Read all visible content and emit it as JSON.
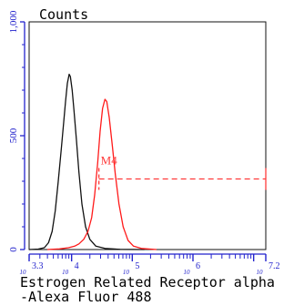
{
  "chart_data": {
    "type": "line",
    "title": "",
    "ylabel": "Counts",
    "xlabel_lines": [
      "Estrogen Related Receptor alpha",
      "-Alexa Fluor 488"
    ],
    "x_scale": "log",
    "xlim": [
      3.3,
      7.2
    ],
    "ylim": [
      0,
      1000
    ],
    "y_ticks": [
      {
        "value": 0,
        "label": "0"
      },
      {
        "value": 500,
        "label": "500"
      },
      {
        "value": 1000,
        "label": "1,000"
      }
    ],
    "x_ticks": [
      {
        "value": 3.3,
        "label": "10^3.3"
      },
      {
        "value": 4,
        "label": "10^4"
      },
      {
        "value": 5,
        "label": "10^5"
      },
      {
        "value": 6,
        "label": "10^6"
      },
      {
        "value": 7.2,
        "label": "10^7.2"
      }
    ],
    "series": [
      {
        "color": "#111111",
        "points": [
          [
            3.3,
            0
          ],
          [
            3.45,
            2
          ],
          [
            3.55,
            8
          ],
          [
            3.62,
            30
          ],
          [
            3.68,
            80
          ],
          [
            3.73,
            170
          ],
          [
            3.78,
            300
          ],
          [
            3.83,
            440
          ],
          [
            3.87,
            560
          ],
          [
            3.9,
            650
          ],
          [
            3.93,
            730
          ],
          [
            3.96,
            770
          ],
          [
            3.98,
            760
          ],
          [
            4.01,
            700
          ],
          [
            4.04,
            610
          ],
          [
            4.08,
            480
          ],
          [
            4.12,
            340
          ],
          [
            4.17,
            200
          ],
          [
            4.23,
            100
          ],
          [
            4.3,
            45
          ],
          [
            4.4,
            15
          ],
          [
            4.55,
            5
          ],
          [
            4.8,
            1
          ],
          [
            5.2,
            0
          ]
        ]
      },
      {
        "color": "#ff1a1a",
        "points": [
          [
            3.6,
            0
          ],
          [
            3.8,
            3
          ],
          [
            3.95,
            8
          ],
          [
            4.05,
            15
          ],
          [
            4.12,
            25
          ],
          [
            4.2,
            45
          ],
          [
            4.27,
            80
          ],
          [
            4.33,
            140
          ],
          [
            4.38,
            240
          ],
          [
            4.43,
            380
          ],
          [
            4.47,
            520
          ],
          [
            4.51,
            620
          ],
          [
            4.55,
            660
          ],
          [
            4.58,
            650
          ],
          [
            4.62,
            580
          ],
          [
            4.67,
            460
          ],
          [
            4.72,
            330
          ],
          [
            4.78,
            200
          ],
          [
            4.85,
            100
          ],
          [
            4.93,
            40
          ],
          [
            5.02,
            15
          ],
          [
            5.15,
            5
          ],
          [
            5.4,
            0
          ]
        ]
      }
    ],
    "gate": {
      "label": "M4",
      "x_start": 4.45,
      "x_end": 7.2,
      "y_level": 310,
      "color": "#ff3b3b"
    }
  },
  "colors": {
    "axis": "#2222cc",
    "frame": "#111111"
  }
}
